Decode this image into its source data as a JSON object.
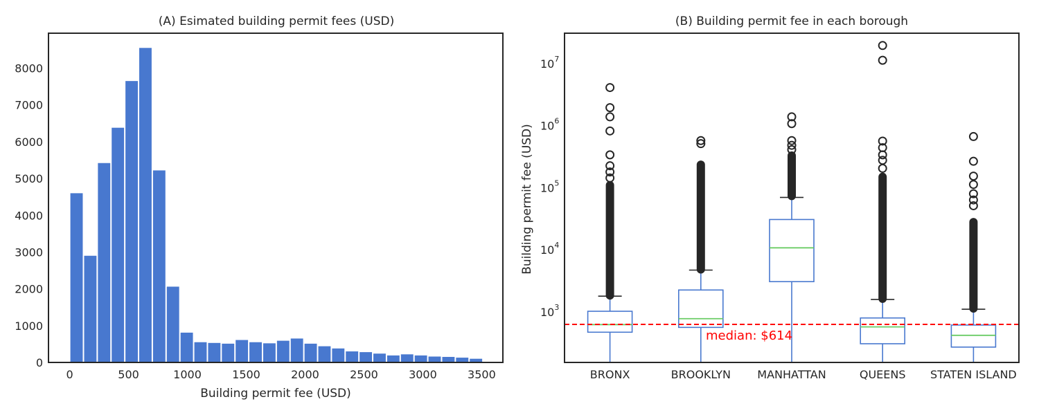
{
  "chart_data": [
    {
      "panel": "A",
      "type": "bar",
      "subtype": "histogram",
      "title": "(A) Esimated building permit fees (USD)",
      "xlabel": "Building permit fee (USD)",
      "ylabel": "",
      "xlim": [
        -180,
        3680
      ],
      "ylim": [
        0,
        8950
      ],
      "xticks": [
        0,
        500,
        1000,
        1500,
        2000,
        2500,
        3000,
        3500
      ],
      "yticks": [
        0,
        1000,
        2000,
        3000,
        4000,
        5000,
        6000,
        7000,
        8000
      ],
      "bin_width": 117,
      "bin_start": 0,
      "values": [
        4600,
        2900,
        5420,
        6380,
        7650,
        8550,
        5220,
        2060,
        810,
        550,
        530,
        510,
        610,
        550,
        520,
        590,
        650,
        510,
        440,
        380,
        300,
        280,
        240,
        190,
        220,
        190,
        160,
        150,
        130,
        100
      ],
      "bar_color": "#4878cf",
      "grid": false
    },
    {
      "panel": "B",
      "type": "box",
      "title": "(B) Building permit fee in each borough",
      "ylabel": "Building permit fee (USD)",
      "yscale": "log",
      "ylim": [
        150,
        30000000
      ],
      "ytick_labels": [
        {
          "value": 1000,
          "base": "10",
          "exp": "3"
        },
        {
          "value": 10000,
          "base": "10",
          "exp": "4"
        },
        {
          "value": 100000,
          "base": "10",
          "exp": "5"
        },
        {
          "value": 1000000,
          "base": "10",
          "exp": "6"
        },
        {
          "value": 10000000,
          "base": "10",
          "exp": "7"
        }
      ],
      "categories": [
        "BRONX",
        "BROOKLYN",
        "MANHATTAN",
        "QUEENS",
        "STATEN ISLAND"
      ],
      "boxes": [
        {
          "whisker_low": 150,
          "q1": 460,
          "median": 610,
          "q3": 1000,
          "whisker_high": 1750,
          "flier_band": [
            1750,
            110000
          ],
          "fliers": [
            4000000,
            1900000,
            1350000,
            800000,
            330000,
            220000,
            175000,
            140000
          ]
        },
        {
          "whisker_low": 150,
          "q1": 550,
          "median": 760,
          "q3": 2200,
          "whisker_high": 4600,
          "flier_band": [
            4600,
            235000
          ],
          "fliers": [
            560000,
            500000
          ]
        },
        {
          "whisker_low": 150,
          "q1": 3000,
          "median": 10500,
          "q3": 30000,
          "whisker_high": 68000,
          "flier_band": [
            70000,
            330000
          ],
          "fliers": [
            1350000,
            1050000,
            560000,
            470000,
            400000
          ]
        },
        {
          "whisker_low": 150,
          "q1": 300,
          "median": 560,
          "q3": 780,
          "whisker_high": 1550,
          "flier_band": [
            1550,
            150000
          ],
          "fliers": [
            19000000,
            11000000,
            550000,
            430000,
            330000,
            270000,
            200000
          ]
        },
        {
          "whisker_low": 150,
          "q1": 265,
          "median": 410,
          "q3": 600,
          "whisker_high": 1080,
          "flier_band": [
            1080,
            28000
          ],
          "fliers": [
            650000,
            260000,
            150000,
            110000,
            78000,
            62000,
            50000
          ]
        }
      ],
      "reference_line": {
        "value": 614,
        "label": "median: $614",
        "color": "#ff0000",
        "style": "dashed"
      },
      "box_color": "#4878cf",
      "median_color": "#6acc65",
      "grid": false
    }
  ]
}
